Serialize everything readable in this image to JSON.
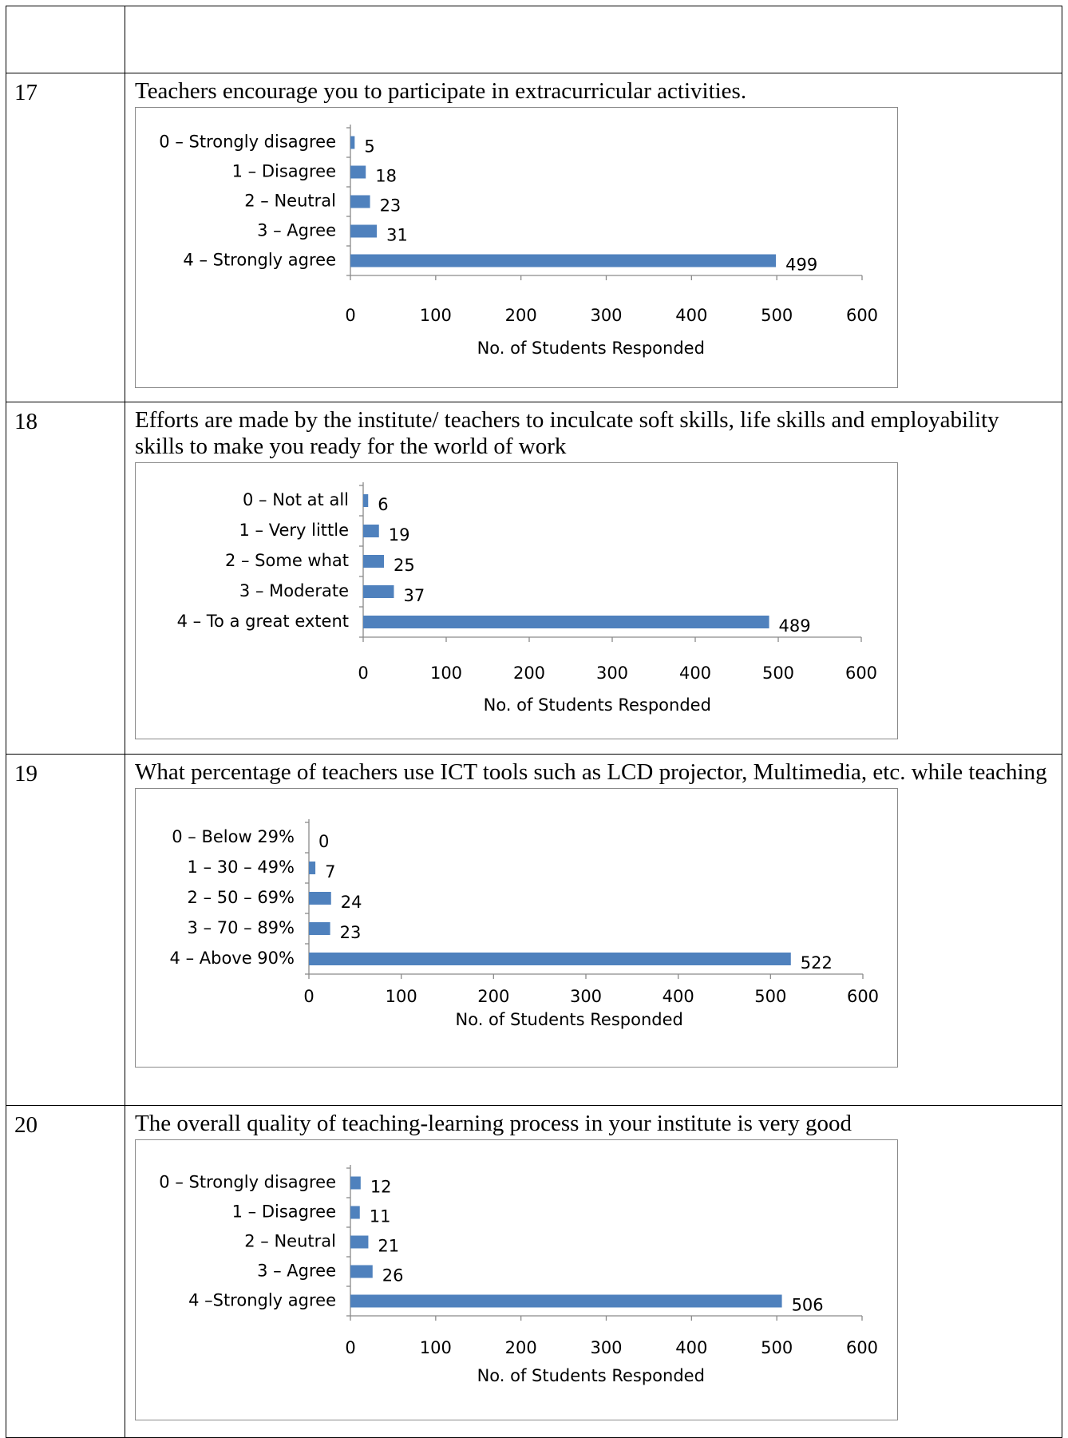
{
  "rows": [
    {
      "number": "",
      "question": ""
    },
    {
      "number": "17",
      "question": "Teachers encourage you to participate in extracurricular activities."
    },
    {
      "number": "18",
      "question": "Efforts are made by the institute/ teachers to inculcate soft skills, life skills and employability skills to make you ready for the world of work"
    },
    {
      "number": "19",
      "question": "What percentage of teachers use ICT tools such as LCD projector, Multimedia, etc. while teaching"
    },
    {
      "number": "20",
      "question": "The overall quality of teaching-learning process in your institute is very good"
    }
  ],
  "bar_color": "#4f81bd",
  "chart_data": [
    {
      "type": "bar",
      "orientation": "horizontal",
      "categories": [
        "0 – Strongly disagree",
        "1 – Disagree",
        "2 – Neutral",
        "3 – Agree",
        "4 – Strongly agree"
      ],
      "values": [
        5,
        18,
        23,
        31,
        499
      ],
      "xlabel": "No. of Students Responded",
      "xlim": [
        0,
        600
      ],
      "xticks": [
        "0",
        "100",
        "200",
        "300",
        "400",
        "500",
        "600"
      ],
      "legend": "none",
      "grid": false
    },
    {
      "type": "bar",
      "orientation": "horizontal",
      "categories": [
        "0 – Not at all",
        "1 – Very little",
        "2 – Some what",
        "3 – Moderate",
        "4 – To a great extent"
      ],
      "values": [
        6,
        19,
        25,
        37,
        489
      ],
      "xlabel": "No. of Students Responded",
      "xlim": [
        0,
        600
      ],
      "xticks": [
        "0",
        "100",
        "200",
        "300",
        "400",
        "500",
        "600"
      ],
      "legend": "none",
      "grid": false
    },
    {
      "type": "bar",
      "orientation": "horizontal",
      "categories": [
        "0 – Below 29%",
        "1 – 30 – 49%",
        "2 – 50 – 69%",
        "3 – 70 – 89%",
        "4 – Above 90%"
      ],
      "values": [
        0,
        7,
        24,
        23,
        522
      ],
      "xlabel": "No. of Students Responded",
      "xlim": [
        0,
        600
      ],
      "xticks": [
        "0",
        "100",
        "200",
        "300",
        "400",
        "500",
        "600"
      ],
      "legend": "none",
      "grid": false
    },
    {
      "type": "bar",
      "orientation": "horizontal",
      "categories": [
        "0 – Strongly disagree",
        "1 – Disagree",
        "2 – Neutral",
        "3 – Agree",
        "4 –Strongly agree"
      ],
      "values": [
        12,
        11,
        21,
        26,
        506
      ],
      "xlabel": "No. of Students Responded",
      "xlim": [
        0,
        600
      ],
      "xticks": [
        "0",
        "100",
        "200",
        "300",
        "400",
        "500",
        "600"
      ],
      "legend": "none",
      "grid": false
    }
  ]
}
